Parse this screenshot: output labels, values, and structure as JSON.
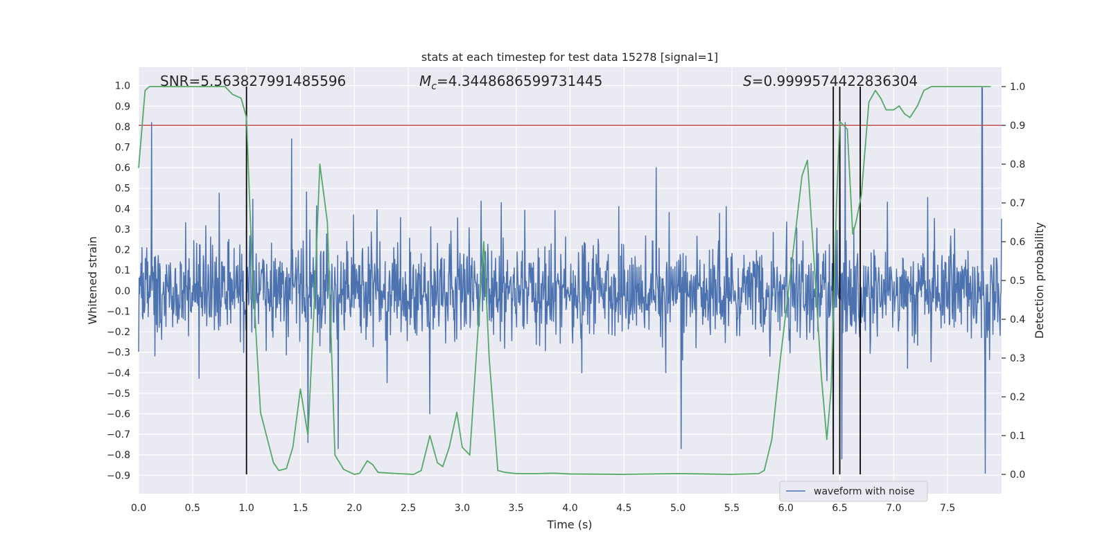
{
  "chart_data": {
    "type": "line",
    "title": "stats at each timestep for test data 15278 [signal=1]",
    "xlabel": "Time (s)",
    "ylabel_left": "Whitened strain",
    "ylabel_right": "Detection probability",
    "xlim": [
      0.0,
      8.0
    ],
    "ylim_left": [
      -0.99,
      1.09
    ],
    "ylim_right": [
      -0.05,
      1.05
    ],
    "x_ticks": [
      0.0,
      0.5,
      1.0,
      1.5,
      2.0,
      2.5,
      3.0,
      3.5,
      4.0,
      4.5,
      5.0,
      5.5,
      6.0,
      6.5,
      7.0,
      7.5
    ],
    "x_tick_labels": [
      "0.0",
      "0.5",
      "1.0",
      "1.5",
      "2.0",
      "2.5",
      "3.0",
      "3.5",
      "4.0",
      "4.5",
      "5.0",
      "5.5",
      "6.0",
      "6.5",
      "7.0",
      "7.5"
    ],
    "y_left_ticks": [
      1.0,
      0.9,
      0.8,
      0.7,
      0.6,
      0.5,
      0.4,
      0.3,
      0.2,
      0.1,
      0.0,
      -0.1,
      -0.2,
      -0.3,
      -0.4,
      -0.5,
      -0.6,
      -0.7,
      -0.8,
      -0.9
    ],
    "y_left_tick_labels": [
      "1.0",
      "0.9",
      "0.8",
      "0.7",
      "0.6",
      "0.5",
      "0.4",
      "0.3",
      "0.2",
      "0.1",
      "0.0",
      "−0.1",
      "−0.2",
      "−0.3",
      "−0.4",
      "−0.5",
      "−0.6",
      "−0.7",
      "−0.8",
      "−0.9"
    ],
    "y_right_ticks": [
      1.0,
      0.9,
      0.8,
      0.7,
      0.6,
      0.5,
      0.4,
      0.3,
      0.2,
      0.1,
      0.0
    ],
    "y_right_tick_labels": [
      "1.0",
      "0.9",
      "0.8",
      "0.7",
      "0.6",
      "0.5",
      "0.4",
      "0.3",
      "0.2",
      "0.1",
      "0.0"
    ],
    "annotations": {
      "snr": "SNR=5.563827991485596",
      "mc_symbol": "M",
      "mc_sub": "c",
      "mc_value": "=4.3448686599731445",
      "s_symbol": "S",
      "s_value": "=0.9999574422836304"
    },
    "legend": {
      "label": "waveform with noise",
      "location": "lower-right"
    },
    "threshold_probability": 0.9,
    "vertical_markers": [
      1.0,
      6.44,
      6.5,
      6.69
    ],
    "waveform": {
      "name": "waveform with noise",
      "color": "#4c72b0",
      "samples": 1800,
      "spikes": [
        [
          0.12,
          0.82
        ],
        [
          1.42,
          0.74
        ],
        [
          7.82,
          0.99
        ],
        [
          7.85,
          -0.89
        ],
        [
          5.03,
          -0.77
        ],
        [
          1.57,
          -0.74
        ],
        [
          1.85,
          -0.77
        ],
        [
          6.5,
          0.83
        ],
        [
          6.44,
          -0.77
        ],
        [
          6.55,
          0.82
        ],
        [
          6.52,
          -0.82
        ],
        [
          2.7,
          -0.6
        ],
        [
          4.8,
          0.6
        ]
      ]
    },
    "detection_probability": {
      "color": "#55a868",
      "points": [
        [
          0.0,
          0.79
        ],
        [
          0.06,
          0.99
        ],
        [
          0.1,
          1.0
        ],
        [
          0.4,
          1.0
        ],
        [
          0.8,
          1.0
        ],
        [
          0.87,
          0.98
        ],
        [
          0.95,
          0.97
        ],
        [
          1.0,
          0.92
        ],
        [
          1.05,
          0.55
        ],
        [
          1.13,
          0.16
        ],
        [
          1.25,
          0.03
        ],
        [
          1.3,
          0.01
        ],
        [
          1.37,
          0.015
        ],
        [
          1.43,
          0.07
        ],
        [
          1.5,
          0.22
        ],
        [
          1.57,
          0.1
        ],
        [
          1.63,
          0.45
        ],
        [
          1.68,
          0.8
        ],
        [
          1.75,
          0.65
        ],
        [
          1.82,
          0.05
        ],
        [
          1.9,
          0.013
        ],
        [
          2.0,
          0.0
        ],
        [
          2.05,
          0.003
        ],
        [
          2.12,
          0.035
        ],
        [
          2.17,
          0.025
        ],
        [
          2.22,
          0.005
        ],
        [
          2.4,
          0.002
        ],
        [
          2.55,
          0.0
        ],
        [
          2.62,
          0.01
        ],
        [
          2.7,
          0.1
        ],
        [
          2.77,
          0.03
        ],
        [
          2.82,
          0.02
        ],
        [
          2.88,
          0.07
        ],
        [
          2.95,
          0.16
        ],
        [
          3.0,
          0.07
        ],
        [
          3.07,
          0.05
        ],
        [
          3.2,
          0.6
        ],
        [
          3.25,
          0.3
        ],
        [
          3.33,
          0.01
        ],
        [
          3.4,
          0.005
        ],
        [
          3.5,
          0.002
        ],
        [
          3.7,
          0.002
        ],
        [
          3.85,
          0.003
        ],
        [
          4.0,
          0.001
        ],
        [
          4.5,
          0.0
        ],
        [
          5.0,
          0.002
        ],
        [
          5.5,
          0.0
        ],
        [
          5.75,
          0.002
        ],
        [
          5.8,
          0.01
        ],
        [
          5.87,
          0.09
        ],
        [
          5.95,
          0.3
        ],
        [
          6.1,
          0.65
        ],
        [
          6.15,
          0.77
        ],
        [
          6.2,
          0.81
        ],
        [
          6.25,
          0.6
        ],
        [
          6.33,
          0.25
        ],
        [
          6.38,
          0.09
        ],
        [
          6.42,
          0.22
        ],
        [
          6.47,
          0.7
        ],
        [
          6.5,
          0.91
        ],
        [
          6.57,
          0.89
        ],
        [
          6.62,
          0.62
        ],
        [
          6.65,
          0.65
        ],
        [
          6.7,
          0.72
        ],
        [
          6.77,
          0.96
        ],
        [
          6.83,
          0.99
        ],
        [
          6.88,
          0.97
        ],
        [
          6.93,
          0.94
        ],
        [
          7.0,
          0.94
        ],
        [
          7.05,
          0.95
        ],
        [
          7.1,
          0.93
        ],
        [
          7.15,
          0.92
        ],
        [
          7.22,
          0.95
        ],
        [
          7.28,
          0.99
        ],
        [
          7.35,
          1.0
        ],
        [
          7.6,
          1.0
        ],
        [
          7.9,
          1.0
        ]
      ]
    },
    "colors": {
      "plot_background": "#eaeaf2",
      "grid": "#ffffff",
      "threshold": "#c44e52",
      "marker": "#000000"
    }
  }
}
